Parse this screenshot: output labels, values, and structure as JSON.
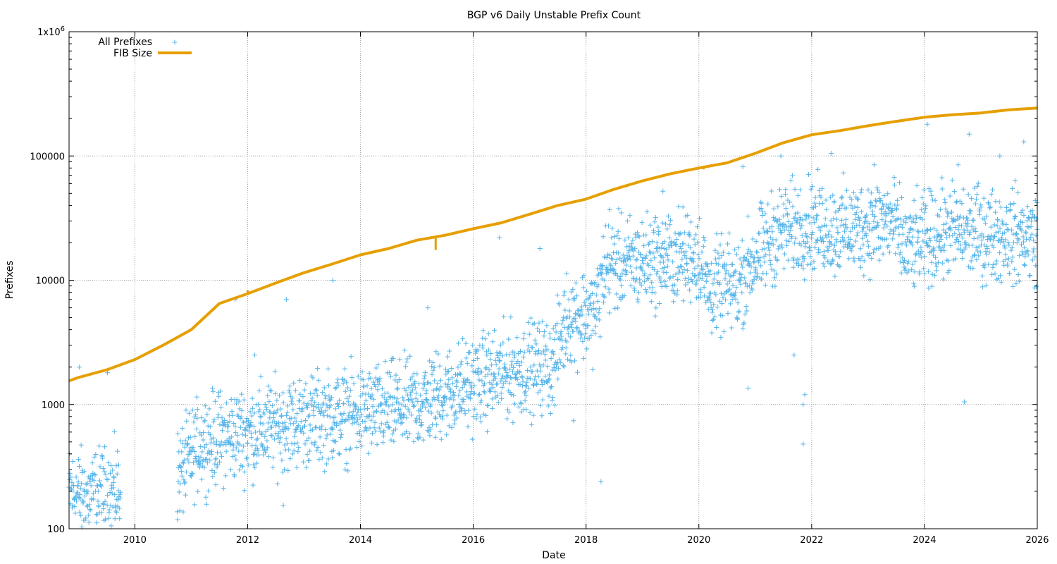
{
  "chart_data": {
    "type": "scatter",
    "title": "BGP v6 Daily Unstable Prefix Count",
    "xlabel": "Date",
    "ylabel": "Prefixes",
    "x_range": [
      "2008-11",
      "2026-01"
    ],
    "y_range": [
      100,
      1000000
    ],
    "y_scale": "log",
    "grid": true,
    "legend_position": "top-left",
    "x_ticks": [
      "2010",
      "2012",
      "2014",
      "2016",
      "2018",
      "2020",
      "2022",
      "2024",
      "2026"
    ],
    "y_ticks": [
      {
        "value": 100,
        "label": "100"
      },
      {
        "value": 1000,
        "label": "1000"
      },
      {
        "value": 10000,
        "label": "10000"
      },
      {
        "value": 100000,
        "label": "100000"
      },
      {
        "value": 1000000,
        "label": "1x10",
        "sup": "6"
      }
    ],
    "series": [
      {
        "name": "All Prefixes",
        "style": "points",
        "marker": "+",
        "color": "#56b4e9",
        "trend": [
          [
            "2008-11",
            200
          ],
          [
            "2009-03",
            180
          ],
          [
            "2009-09",
            200
          ],
          [
            "2010-10",
            260
          ],
          [
            "2011-03",
            500
          ],
          [
            "2012-01",
            600
          ],
          [
            "2013-01",
            750
          ],
          [
            "2014-01",
            850
          ],
          [
            "2015-01",
            1000
          ],
          [
            "2016-01",
            1500
          ],
          [
            "2016-10",
            1900
          ],
          [
            "2017-06",
            2100
          ],
          [
            "2017-09",
            5000
          ],
          [
            "2018-03",
            5500
          ],
          [
            "2018-05",
            13000
          ],
          [
            "2019-06",
            15000
          ],
          [
            "2020-01",
            16000
          ],
          [
            "2020-03",
            8500
          ],
          [
            "2020-09",
            9000
          ],
          [
            "2021-01",
            15000
          ],
          [
            "2021-06",
            25000
          ],
          [
            "2022-01",
            28000
          ],
          [
            "2022-06",
            25000
          ],
          [
            "2023-06",
            30000
          ],
          [
            "2023-09",
            18000
          ],
          [
            "2024-06",
            25000
          ],
          [
            "2025-06",
            23000
          ],
          [
            "2026-01",
            22000
          ]
        ],
        "outliers": [
          [
            "2009-01",
            2000
          ],
          [
            "2009-07",
            1800
          ],
          [
            "2011-10",
            7000
          ],
          [
            "2012-02",
            2500
          ],
          [
            "2012-09",
            7000
          ],
          [
            "2013-07",
            10000
          ],
          [
            "2015-03",
            6000
          ],
          [
            "2016-06",
            22000
          ],
          [
            "2017-03",
            18000
          ],
          [
            "2018-06",
            37000
          ],
          [
            "2019-05",
            52000
          ],
          [
            "2020-10",
            82000
          ],
          [
            "2021-06",
            100000
          ],
          [
            "2022-05",
            105000
          ],
          [
            "2023-02",
            85000
          ],
          [
            "2024-01",
            180000
          ],
          [
            "2024-08",
            85000
          ],
          [
            "2024-10",
            150000
          ],
          [
            "2025-05",
            100000
          ],
          [
            "2025-10",
            130000
          ],
          [
            "2017-10",
            740
          ],
          [
            "2018-04",
            240
          ],
          [
            "2012-08",
            155
          ],
          [
            "2020-11",
            1350
          ],
          [
            "2021-09",
            2500
          ],
          [
            "2021-11",
            1200
          ],
          [
            "2021-11",
            1000
          ],
          [
            "2021-11",
            480
          ],
          [
            "2024-09",
            1050
          ]
        ]
      },
      {
        "name": "FIB Size",
        "style": "line",
        "color": "#e69f00",
        "points": [
          [
            "2008-11",
            1550
          ],
          [
            "2009-01",
            1650
          ],
          [
            "2009-07",
            1900
          ],
          [
            "2010-01",
            2300
          ],
          [
            "2010-07",
            3000
          ],
          [
            "2011-01",
            4000
          ],
          [
            "2011-07",
            6500
          ],
          [
            "2012-01",
            7800
          ],
          [
            "2012-07",
            9500
          ],
          [
            "2013-01",
            11500
          ],
          [
            "2013-07",
            13500
          ],
          [
            "2014-01",
            16000
          ],
          [
            "2014-07",
            18000
          ],
          [
            "2015-01",
            21000
          ],
          [
            "2015-07",
            23000
          ],
          [
            "2016-01",
            26000
          ],
          [
            "2016-07",
            29000
          ],
          [
            "2017-01",
            34000
          ],
          [
            "2017-07",
            40000
          ],
          [
            "2018-01",
            45000
          ],
          [
            "2018-07",
            54000
          ],
          [
            "2019-01",
            63000
          ],
          [
            "2019-07",
            72000
          ],
          [
            "2020-01",
            80000
          ],
          [
            "2020-07",
            88000
          ],
          [
            "2021-01",
            105000
          ],
          [
            "2021-07",
            128000
          ],
          [
            "2022-01",
            148000
          ],
          [
            "2022-07",
            160000
          ],
          [
            "2023-01",
            175000
          ],
          [
            "2023-07",
            190000
          ],
          [
            "2024-01",
            205000
          ],
          [
            "2024-07",
            215000
          ],
          [
            "2025-01",
            222000
          ],
          [
            "2025-07",
            235000
          ],
          [
            "2026-01",
            243000
          ]
        ],
        "dips": [
          [
            "2012-01",
            8300
          ],
          [
            "2015-05",
            17500
          ],
          [
            "2020-02",
            78000
          ]
        ]
      }
    ]
  }
}
